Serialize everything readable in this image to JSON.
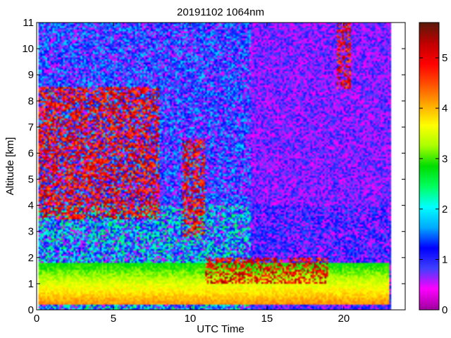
{
  "chart_data": {
    "type": "heatmap",
    "title": "20191102 1064nm",
    "xlabel": "UTC Time",
    "ylabel": "Altitude [km]",
    "xlim": [
      0,
      24
    ],
    "ylim": [
      0,
      11
    ],
    "x_ticks": [
      0,
      5,
      10,
      15,
      20
    ],
    "y_ticks": [
      0,
      1,
      2,
      3,
      4,
      5,
      6,
      7,
      8,
      9,
      10,
      11
    ],
    "colorbar": {
      "range": [
        0,
        5.7
      ],
      "ticks": [
        0,
        1,
        2,
        3,
        4,
        5
      ],
      "colormap": [
        "#a000a0",
        "#ff00ff",
        "#4040ff",
        "#0000ff",
        "#00aaff",
        "#00ffff",
        "#00ff60",
        "#00dd00",
        "#aaff00",
        "#ffff00",
        "#ffaa00",
        "#ff5000",
        "#ff0000",
        "#c00000",
        "#5c1a0a"
      ]
    },
    "data_extent_x": [
      0.1,
      23.1
    ],
    "background_level": 0.3,
    "features": [
      {
        "kind": "boundary_layer",
        "x_range": [
          0,
          23
        ],
        "altitude_km": [
          0.2,
          1.8
        ],
        "level_range": [
          2.8,
          4.2
        ]
      },
      {
        "kind": "cirrus_cloud",
        "x_range": [
          0,
          8
        ],
        "altitude_km": [
          3.5,
          8.5
        ],
        "level": 5.5
      },
      {
        "kind": "cloud",
        "x_range": [
          9.5,
          11
        ],
        "altitude_km": [
          2.8,
          6.5
        ],
        "level": 5.5
      },
      {
        "kind": "low_cloud",
        "x_range": [
          11,
          19
        ],
        "altitude_km": [
          1.0,
          2.0
        ],
        "level": 5.5
      },
      {
        "kind": "high_cloud",
        "x_range": [
          19.5,
          20.5
        ],
        "altitude_km": [
          8.5,
          11
        ],
        "level": 5.5
      }
    ]
  }
}
